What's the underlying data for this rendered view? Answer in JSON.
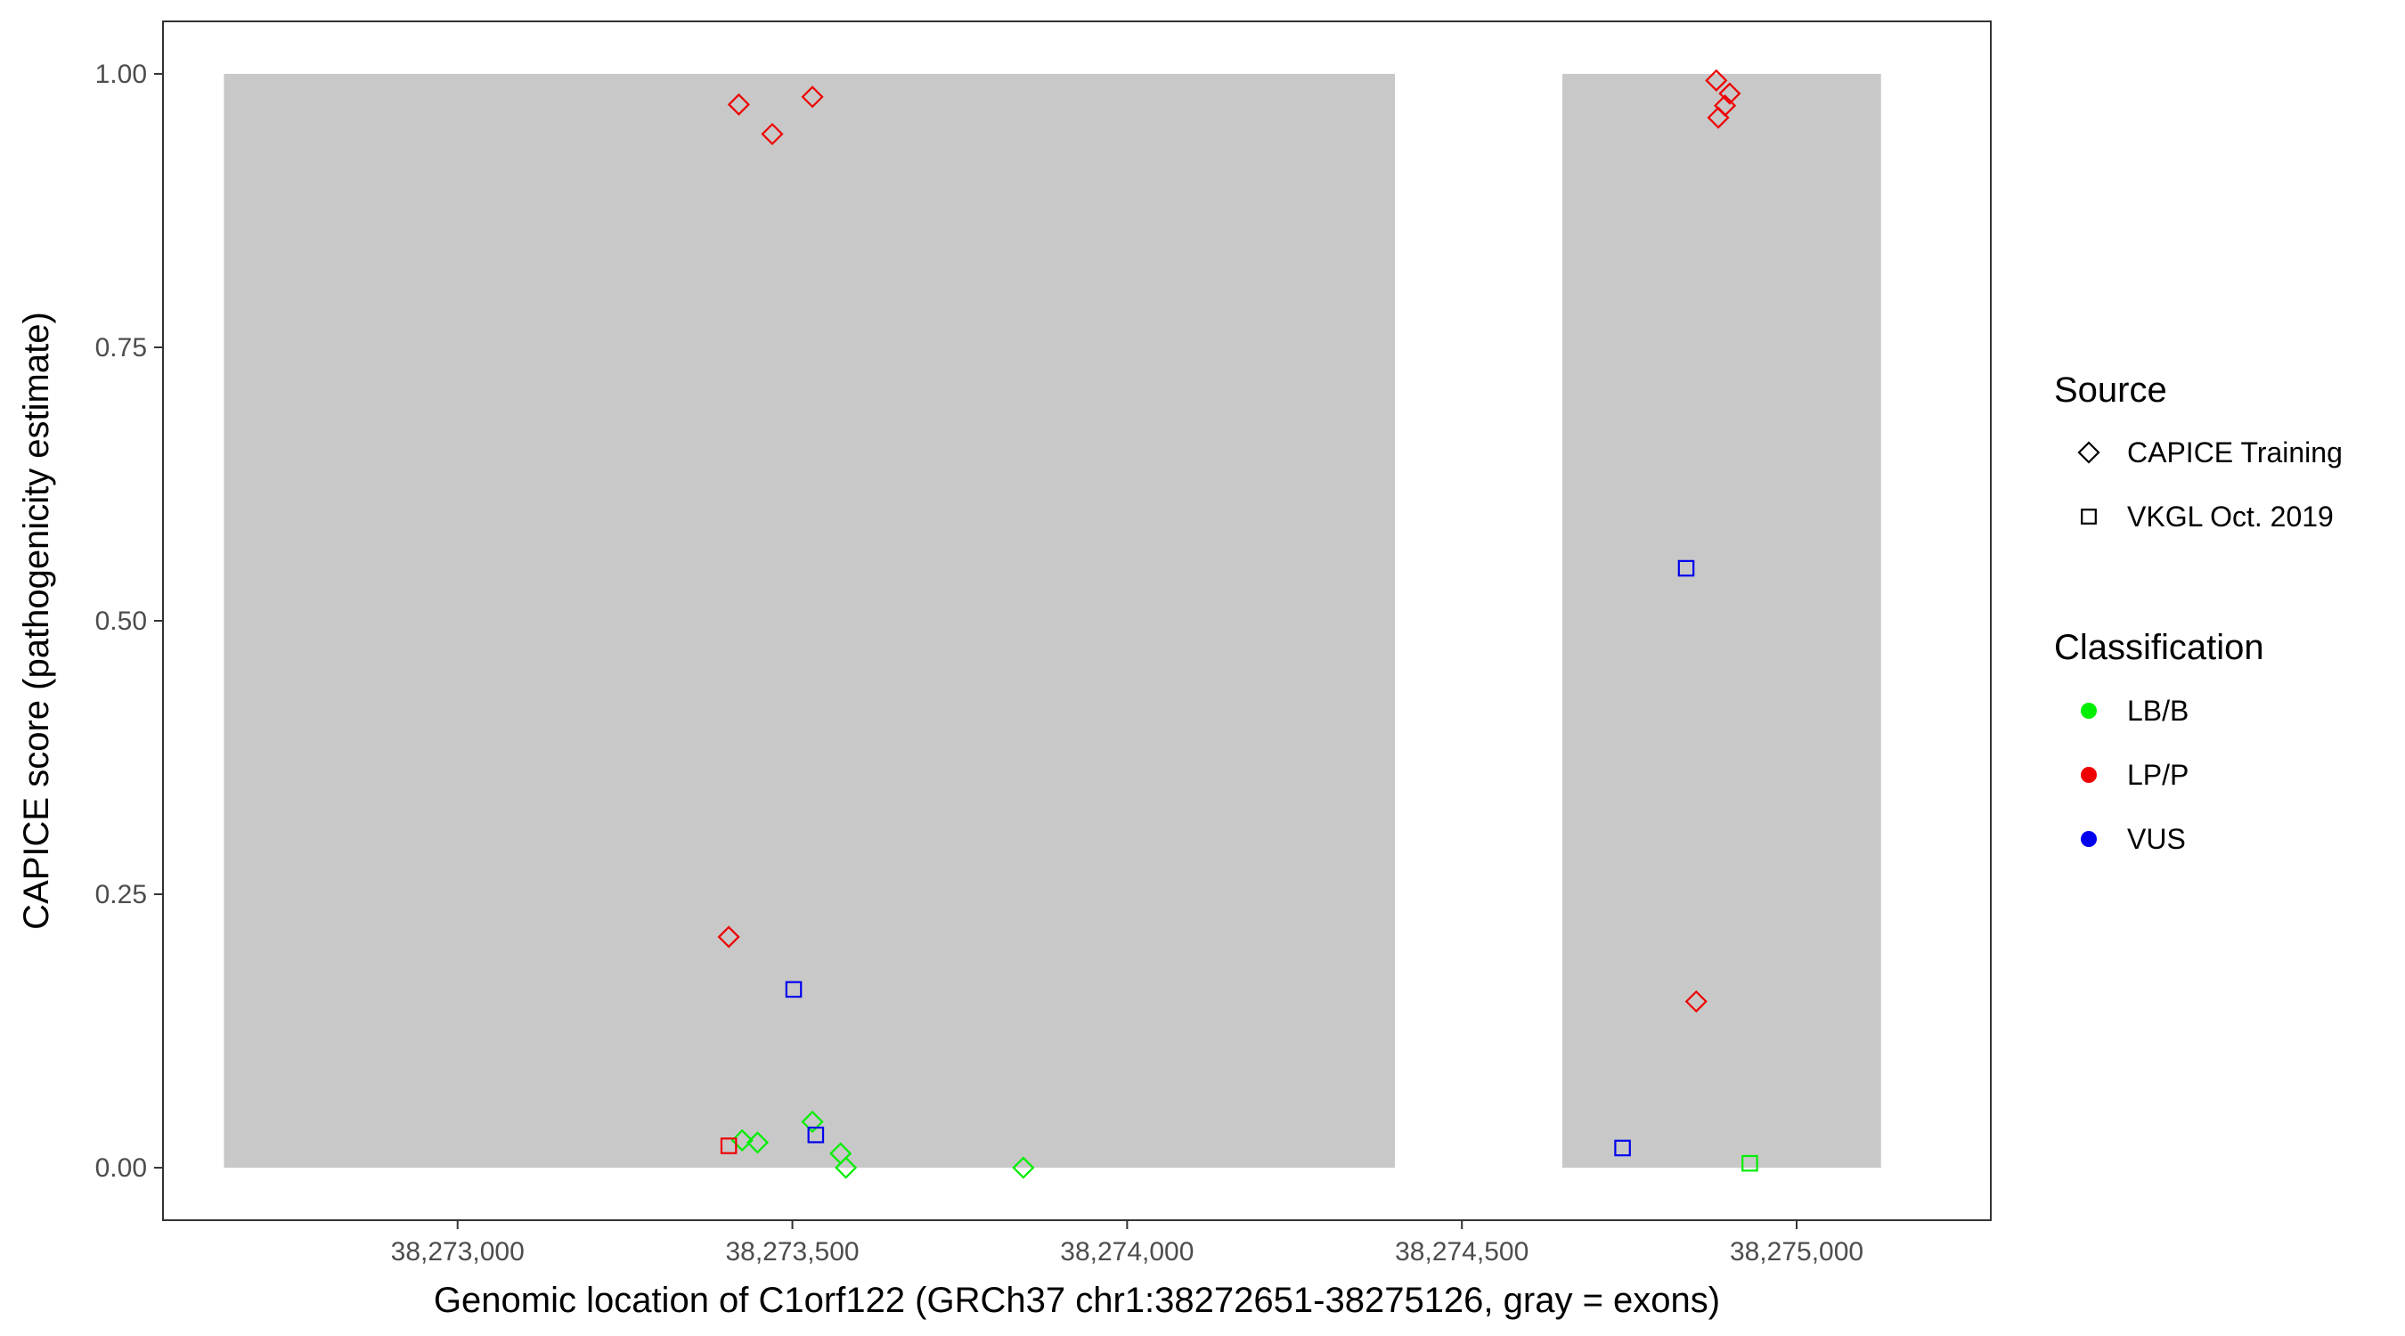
{
  "chart_data": {
    "type": "scatter",
    "title": "",
    "xlabel": "Genomic location of C1orf122 (GRCh37 chr1:38272651-38275126, gray = exons)",
    "ylabel": "CAPICE score (pathogenicity estimate)",
    "xlim": [
      38272560,
      38275290
    ],
    "ylim": [
      -0.048,
      1.048
    ],
    "x_ticks": [
      38273000,
      38273500,
      38274000,
      38274500,
      38275000
    ],
    "x_tick_labels": [
      "38,273,000",
      "38,273,500",
      "38,274,000",
      "38,274,500",
      "38,275,000"
    ],
    "y_ticks": [
      0,
      0.25,
      0.5,
      0.75,
      1.0
    ],
    "y_tick_labels": [
      "0.00",
      "0.25",
      "0.50",
      "0.75",
      "1.00"
    ],
    "grid": false,
    "exons": [
      {
        "start": 38272651,
        "end": 38274400
      },
      {
        "start": 38274650,
        "end": 38275126
      }
    ],
    "exon_color": "#c8c8c8",
    "colors": {
      "LB/B": "#00ee00",
      "LP/P": "#ee0000",
      "VUS": "#0000ee"
    },
    "points": [
      {
        "x": 38273420,
        "y": 0.972,
        "source": "CAPICE Training",
        "classification": "LP/P"
      },
      {
        "x": 38273530,
        "y": 0.979,
        "source": "CAPICE Training",
        "classification": "LP/P"
      },
      {
        "x": 38273470,
        "y": 0.945,
        "source": "CAPICE Training",
        "classification": "LP/P"
      },
      {
        "x": 38273405,
        "y": 0.211,
        "source": "CAPICE Training",
        "classification": "LP/P"
      },
      {
        "x": 38274880,
        "y": 0.994,
        "source": "CAPICE Training",
        "classification": "LP/P"
      },
      {
        "x": 38274900,
        "y": 0.982,
        "source": "CAPICE Training",
        "classification": "LP/P"
      },
      {
        "x": 38274893,
        "y": 0.971,
        "source": "CAPICE Training",
        "classification": "LP/P"
      },
      {
        "x": 38274883,
        "y": 0.96,
        "source": "CAPICE Training",
        "classification": "LP/P"
      },
      {
        "x": 38274850,
        "y": 0.152,
        "source": "CAPICE Training",
        "classification": "LP/P"
      },
      {
        "x": 38273530,
        "y": 0.042,
        "source": "CAPICE Training",
        "classification": "LB/B"
      },
      {
        "x": 38273425,
        "y": 0.025,
        "source": "CAPICE Training",
        "classification": "LB/B"
      },
      {
        "x": 38273448,
        "y": 0.023,
        "source": "CAPICE Training",
        "classification": "LB/B"
      },
      {
        "x": 38273572,
        "y": 0.013,
        "source": "CAPICE Training",
        "classification": "LB/B"
      },
      {
        "x": 38273580,
        "y": 0.0,
        "source": "CAPICE Training",
        "classification": "LB/B"
      },
      {
        "x": 38273845,
        "y": 0.0,
        "source": "CAPICE Training",
        "classification": "LB/B"
      },
      {
        "x": 38273502,
        "y": 0.163,
        "source": "VKGL Oct. 2019",
        "classification": "VUS"
      },
      {
        "x": 38273535,
        "y": 0.03,
        "source": "VKGL Oct. 2019",
        "classification": "VUS"
      },
      {
        "x": 38273405,
        "y": 0.02,
        "source": "VKGL Oct. 2019",
        "classification": "LP/P"
      },
      {
        "x": 38274835,
        "y": 0.548,
        "source": "VKGL Oct. 2019",
        "classification": "VUS"
      },
      {
        "x": 38274740,
        "y": 0.018,
        "source": "VKGL Oct. 2019",
        "classification": "VUS"
      },
      {
        "x": 38274930,
        "y": 0.004,
        "source": "VKGL Oct. 2019",
        "classification": "LB/B"
      }
    ],
    "legend": {
      "placement": "right",
      "source_title": "Source",
      "source_entries": [
        {
          "label": "CAPICE Training",
          "shape": "diamond"
        },
        {
          "label": "VKGL Oct. 2019",
          "shape": "square"
        }
      ],
      "classification_title": "Classification",
      "classification_entries": [
        {
          "label": "LB/B",
          "color": "#00ee00"
        },
        {
          "label": "LP/P",
          "color": "#ee0000"
        },
        {
          "label": "VUS",
          "color": "#0000ee"
        }
      ]
    }
  }
}
